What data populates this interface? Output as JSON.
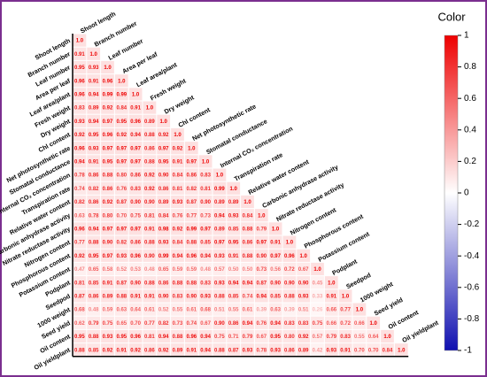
{
  "chart_data": {
    "type": "heatmap",
    "colorbar_title": "Color",
    "variables": [
      "Shoot length",
      "Branch number",
      "Leaf number",
      "Area per leaf",
      "Leaf area/plant",
      "Fresh weight",
      "Dry weight",
      "Chl content",
      "Net photosynthetic rate",
      "Stomatal conductance",
      "Internal CO₂ concentration",
      "Transpiration rate",
      "Relative water content",
      "Carbonic anhydrase activity",
      "Nitrate reductase activity",
      "Nitrogen content",
      "Phosphorous content",
      "Potassium content",
      "Podplant",
      "Seedpod",
      "1000 weight",
      "Seed yield",
      "Oil content",
      "Oil yieldplant"
    ],
    "values": [
      [
        1.0
      ],
      [
        0.91,
        1.0
      ],
      [
        0.95,
        0.93,
        1.0
      ],
      [
        0.96,
        0.91,
        0.96,
        1.0
      ],
      [
        0.96,
        0.94,
        0.99,
        0.99,
        1.0
      ],
      [
        0.83,
        0.89,
        0.92,
        0.84,
        0.91,
        1.0
      ],
      [
        0.93,
        0.94,
        0.97,
        0.95,
        0.96,
        0.89,
        1.0
      ],
      [
        0.92,
        0.95,
        0.96,
        0.92,
        0.94,
        0.88,
        0.92,
        1.0
      ],
      [
        0.96,
        0.93,
        0.97,
        0.97,
        0.97,
        0.86,
        0.97,
        0.92,
        1.0
      ],
      [
        0.94,
        0.91,
        0.95,
        0.97,
        0.97,
        0.88,
        0.95,
        0.91,
        0.97,
        1.0
      ],
      [
        0.78,
        0.86,
        0.88,
        0.8,
        0.86,
        0.92,
        0.9,
        0.84,
        0.86,
        0.83,
        1.0
      ],
      [
        0.74,
        0.82,
        0.86,
        0.76,
        0.83,
        0.92,
        0.86,
        0.81,
        0.82,
        0.81,
        0.99,
        1.0
      ],
      [
        0.82,
        0.86,
        0.92,
        0.87,
        0.9,
        0.9,
        0.89,
        0.93,
        0.87,
        0.9,
        0.89,
        0.89,
        1.0
      ],
      [
        0.63,
        0.78,
        0.8,
        0.7,
        0.75,
        0.81,
        0.84,
        0.76,
        0.77,
        0.73,
        0.94,
        0.93,
        0.84,
        1.0
      ],
      [
        0.96,
        0.94,
        0.97,
        0.97,
        0.97,
        0.91,
        0.98,
        0.92,
        0.99,
        0.97,
        0.89,
        0.85,
        0.88,
        0.79,
        1.0
      ],
      [
        0.77,
        0.88,
        0.9,
        0.82,
        0.86,
        0.88,
        0.93,
        0.84,
        0.88,
        0.85,
        0.97,
        0.95,
        0.86,
        0.97,
        0.91,
        1.0
      ],
      [
        0.92,
        0.95,
        0.97,
        0.93,
        0.96,
        0.9,
        0.99,
        0.94,
        0.96,
        0.94,
        0.93,
        0.91,
        0.88,
        0.9,
        0.97,
        0.96,
        1.0
      ],
      [
        0.47,
        0.65,
        0.58,
        0.52,
        0.53,
        0.48,
        0.65,
        0.59,
        0.59,
        0.48,
        0.57,
        0.5,
        0.5,
        0.73,
        0.56,
        0.72,
        0.67,
        1.0
      ],
      [
        0.81,
        0.85,
        0.91,
        0.87,
        0.9,
        0.88,
        0.86,
        0.88,
        0.88,
        0.83,
        0.93,
        0.94,
        0.94,
        0.87,
        0.9,
        0.9,
        0.9,
        0.45,
        1.0
      ],
      [
        0.87,
        0.86,
        0.89,
        0.88,
        0.91,
        0.91,
        0.9,
        0.83,
        0.9,
        0.93,
        0.88,
        0.85,
        0.74,
        0.94,
        0.85,
        0.88,
        0.93,
        0.33,
        0.91,
        1.0
      ],
      [
        0.68,
        0.48,
        0.59,
        0.63,
        0.64,
        0.61,
        0.52,
        0.55,
        0.61,
        0.68,
        0.51,
        0.55,
        0.61,
        0.39,
        0.63,
        0.39,
        0.51,
        0.26,
        0.66,
        0.77,
        1.0
      ],
      [
        0.62,
        0.79,
        0.75,
        0.65,
        0.7,
        0.77,
        0.82,
        0.73,
        0.74,
        0.67,
        0.9,
        0.86,
        0.94,
        0.76,
        0.94,
        0.83,
        0.83,
        0.75,
        0.66,
        0.72,
        0.66,
        1.0
      ],
      [
        0.95,
        0.88,
        0.93,
        0.95,
        0.96,
        0.81,
        0.94,
        0.88,
        0.96,
        0.94,
        0.75,
        0.71,
        0.79,
        0.67,
        0.95,
        0.8,
        0.92,
        0.57,
        0.79,
        0.83,
        0.55,
        0.64,
        1.0
      ],
      [
        0.88,
        0.85,
        0.92,
        0.91,
        0.92,
        0.86,
        0.92,
        0.89,
        0.91,
        0.94,
        0.88,
        0.87,
        0.93,
        0.78,
        0.93,
        0.86,
        0.89,
        0.42,
        0.93,
        0.91,
        0.7,
        0.7,
        0.84,
        1.0
      ]
    ],
    "value_labels": [
      [
        "1.0"
      ],
      [
        "0.91",
        "1.0"
      ],
      [
        "0.95",
        "0.93",
        "1.0"
      ],
      [
        "0.96",
        "0.91",
        "0.96",
        "1.0"
      ],
      [
        "0.96",
        "0.94",
        "0.99",
        "0.99",
        "1.0"
      ],
      [
        "0.83",
        "0.89",
        "0.92",
        "0.84",
        "0.91",
        "1.0"
      ],
      [
        "0.93",
        "0.94",
        "0.97",
        "0.95",
        "0.96",
        "0.89",
        "1.0"
      ],
      [
        "0.92",
        "0.95",
        "0.96",
        "0.92",
        "0.94",
        "0.88",
        "0.92",
        "1.0"
      ],
      [
        "0.96",
        "0.93",
        "0.97",
        "0.97",
        "0.97",
        "0.86",
        "0.97",
        "0.92",
        "1.0"
      ],
      [
        "0.94",
        "0.91",
        "0.95",
        "0.97",
        "0.97",
        "0.88",
        "0.95",
        "0.91",
        "0.97",
        "1.0"
      ],
      [
        "0.78",
        "0.86",
        "0.88",
        "0.80",
        "0.86",
        "0.92",
        "0.90",
        "0.84",
        "0.86",
        "0.83",
        "1.0"
      ],
      [
        "0.74",
        "0.82",
        "0.86",
        "0.76",
        "0.83",
        "0.92",
        "0.86",
        "0.81",
        "0.82",
        "0.81",
        "0.99",
        "1.0"
      ],
      [
        "0.82",
        "0.86",
        "0.92",
        "0.87",
        "0.90",
        "0.90",
        "0.89",
        "0.93",
        "0.87",
        "0.90",
        "0.89",
        "0.89",
        "1.0"
      ],
      [
        "0.63",
        "0.78",
        "0.80",
        "0.70",
        "0.75",
        "0.81",
        "0.84",
        "0.76",
        "0.77",
        "0.73",
        "0.94",
        "0.93",
        "0.84",
        "1.0"
      ],
      [
        "0.96",
        "0.94",
        "0.97",
        "0.97",
        "0.97",
        "0.91",
        "0.98",
        "0.92",
        "0.99",
        "0.97",
        "0.89",
        "0.85",
        "0.88",
        "0.79",
        "1.0"
      ],
      [
        "0.77",
        "0.88",
        "0.90",
        "0.82",
        "0.86",
        "0.88",
        "0.93",
        "0.84",
        "0.88",
        "0.85",
        "0.97",
        "0.95",
        "0.86",
        "0.97",
        "0.91",
        "1.0"
      ],
      [
        "0.92",
        "0.95",
        "0.97",
        "0.93",
        "0.96",
        "0.90",
        "0.99",
        "0.94",
        "0.96",
        "0.94",
        "0.93",
        "0.91",
        "0.88",
        "0.90",
        "0.97",
        "0.96",
        "1.0"
      ],
      [
        "0.47",
        "0.65",
        "0.58",
        "0.52",
        "0.53",
        "0.48",
        "0.65",
        "0.59",
        "0.59",
        "0.48",
        "0.57",
        "0.50",
        "0.50",
        "0.73",
        "0.56",
        "0.72",
        "0.67",
        "1.0"
      ],
      [
        "0.81",
        "0.85",
        "0.91",
        "0.87",
        "0.90",
        "0.88",
        "0.86",
        "0.88",
        "0.88",
        "0.83",
        "0.93",
        "0.94",
        "0.94",
        "0.87",
        "0.90",
        "0.90",
        "0.90",
        "0.45",
        "1.0"
      ],
      [
        "0.87",
        "0.86",
        "0.89",
        "0.88",
        "0.91",
        "0.91",
        "0.90",
        "0.83",
        "0.90",
        "0.93",
        "0.88",
        "0.85",
        "0.74",
        "0.94",
        "0.85",
        "0.88",
        "0.93",
        "0.33",
        "0.91",
        "1.0"
      ],
      [
        "0.68",
        "0.48",
        "0.59",
        "0.63",
        "0.64",
        "0.61",
        "0.52",
        "0.55",
        "0.61",
        "0.68",
        "0.51",
        "0.55",
        "0.61",
        "0.39",
        "0.63",
        "0.39",
        "0.51",
        "0.26",
        "0.66",
        "0.77",
        "1.0"
      ],
      [
        "0.62",
        "0.79",
        "0.75",
        "0.65",
        "0.70",
        "0.77",
        "0.82",
        "0.73",
        "0.74",
        "0.67",
        "0.90",
        "0.86",
        "0.94",
        "0.76",
        "0.94",
        "0.83",
        "0.83",
        "0.75",
        "0.66",
        "0.72",
        "0.66",
        "1.0"
      ],
      [
        "0.95",
        "0.88",
        "0.93",
        "0.95",
        "0.96",
        "0.81",
        "0.94",
        "0.88",
        "0.96",
        "0.94",
        "0.75",
        "0.71",
        "0.79",
        "0.67",
        "0.95",
        "0.80",
        "0.92",
        "0.57",
        "0.79",
        "0.83",
        "0.55",
        "0.64",
        "1.0"
      ],
      [
        "0.88",
        "0.85",
        "0.92",
        "0.91",
        "0.92",
        "0.86",
        "0.92",
        "0.89",
        "0.91",
        "0.94",
        "0.88",
        "0.87",
        "0.93",
        "0.78",
        "0.93",
        "0.86",
        "0.89",
        "0.42",
        "0.93",
        "0.91",
        "0.70",
        "0.70",
        "0.84",
        "1.0"
      ]
    ],
    "colors": [
      "#1010b0",
      "#ffffff",
      "#ee0000"
    ],
    "zlim": [
      -1,
      1
    ],
    "zticks": [
      1,
      0.8,
      0.6,
      0.4,
      0.2,
      0,
      -0.2,
      -0.4,
      -0.6,
      -0.8,
      -1
    ]
  }
}
